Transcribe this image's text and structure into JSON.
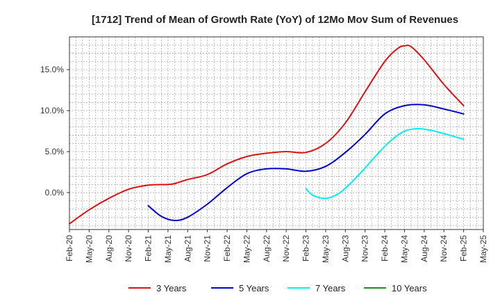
{
  "chart_data": {
    "type": "line",
    "title": "[1712]  Trend of Mean of Growth Rate (YoY) of 12Mo Mov Sum of Revenues",
    "xlabel": "",
    "ylabel": "",
    "x_ticks": [
      "Feb-20",
      "May-20",
      "Aug-20",
      "Nov-20",
      "Feb-21",
      "May-21",
      "Aug-21",
      "Nov-21",
      "Feb-22",
      "May-22",
      "Aug-22",
      "Nov-22",
      "Feb-23",
      "May-23",
      "Aug-23",
      "Nov-23",
      "Feb-24",
      "May-24",
      "Aug-24",
      "Nov-24",
      "Feb-25",
      "May-25"
    ],
    "y_ticks": [
      {
        "value": 0,
        "label": "0.0%"
      },
      {
        "value": 5,
        "label": "5.0%"
      },
      {
        "value": 10,
        "label": "10.0%"
      },
      {
        "value": 15,
        "label": "15.0%"
      }
    ],
    "ylim": [
      -4.5,
      19
    ],
    "xlim_months": [
      0,
      63
    ],
    "grid": true,
    "legend_position": "bottom",
    "series": [
      {
        "name": "3 Years",
        "color": "#dd1111",
        "points": [
          [
            0,
            -3.8
          ],
          [
            3,
            -2.1
          ],
          [
            6,
            -0.7
          ],
          [
            9,
            0.4
          ],
          [
            12,
            0.9
          ],
          [
            15,
            1.0
          ],
          [
            16,
            1.1
          ],
          [
            18,
            1.6
          ],
          [
            21,
            2.2
          ],
          [
            24,
            3.5
          ],
          [
            27,
            4.4
          ],
          [
            30,
            4.8
          ],
          [
            33,
            5.0
          ],
          [
            36,
            4.9
          ],
          [
            39,
            6.0
          ],
          [
            42,
            8.5
          ],
          [
            45,
            12.3
          ],
          [
            48,
            16.0
          ],
          [
            50,
            17.6
          ],
          [
            51,
            17.9
          ],
          [
            52,
            17.8
          ],
          [
            54,
            16.2
          ],
          [
            57,
            13.2
          ],
          [
            60,
            10.6
          ],
          [
            63,
            null
          ]
        ]
      },
      {
        "name": "5 Years",
        "color": "#0000cc",
        "points": [
          [
            12,
            -1.6
          ],
          [
            14,
            -2.9
          ],
          [
            16,
            -3.4
          ],
          [
            18,
            -3.0
          ],
          [
            21,
            -1.4
          ],
          [
            24,
            0.6
          ],
          [
            27,
            2.3
          ],
          [
            30,
            2.9
          ],
          [
            33,
            2.9
          ],
          [
            36,
            2.6
          ],
          [
            39,
            3.2
          ],
          [
            42,
            4.9
          ],
          [
            45,
            7.1
          ],
          [
            48,
            9.6
          ],
          [
            51,
            10.6
          ],
          [
            54,
            10.7
          ],
          [
            57,
            10.2
          ],
          [
            60,
            9.6
          ]
        ]
      },
      {
        "name": "7 Years",
        "color": "#00eeee",
        "points": [
          [
            36,
            0.5
          ],
          [
            37,
            -0.3
          ],
          [
            39,
            -0.7
          ],
          [
            41,
            -0.1
          ],
          [
            43,
            1.3
          ],
          [
            45,
            3.0
          ],
          [
            47,
            4.8
          ],
          [
            49,
            6.4
          ],
          [
            51,
            7.5
          ],
          [
            53,
            7.8
          ],
          [
            55,
            7.6
          ],
          [
            57,
            7.2
          ],
          [
            60,
            6.5
          ]
        ]
      },
      {
        "name": "10 Years",
        "color": "#228b22",
        "points": []
      }
    ]
  }
}
